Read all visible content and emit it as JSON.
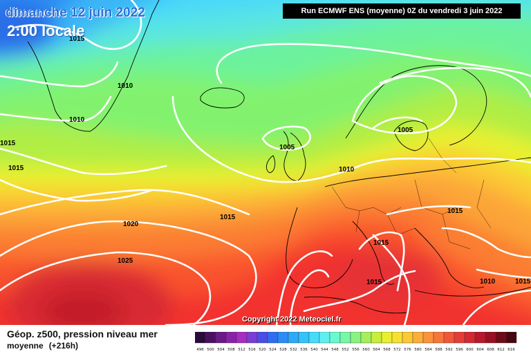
{
  "header": {
    "date": "dimanche 12 juin 2022",
    "time": "2:00 locale",
    "run": "Run ECMWF ENS (moyenne) 0Z du vendredi 3 juin 2022"
  },
  "footer": {
    "title": "Géop. z500, pression niveau mer",
    "subtitle": "moyenne",
    "lead": "(+216h)",
    "copyright": "Copyright 2022 Meteociel.fr"
  },
  "isobars": {
    "labels": [
      {
        "id": "iso-1015-greenland",
        "text": "1015"
      },
      {
        "id": "iso-1010-greenland-a",
        "text": "1010"
      },
      {
        "id": "iso-1010-greenland-b",
        "text": "1010"
      },
      {
        "id": "iso-1015-west-a",
        "text": "1015"
      },
      {
        "id": "iso-1015-west-b",
        "text": "1015"
      },
      {
        "id": "iso-1005-scotland",
        "text": "1005"
      },
      {
        "id": "iso-1010-north-sea",
        "text": "1010"
      },
      {
        "id": "iso-1005-scandinavia",
        "text": "1005"
      },
      {
        "id": "iso-1020-atlantic",
        "text": "1020"
      },
      {
        "id": "iso-1015-atlantic",
        "text": "1015"
      },
      {
        "id": "iso-1025-azores",
        "text": "1025"
      },
      {
        "id": "iso-1015-balkans",
        "text": "1015"
      },
      {
        "id": "iso-1015-italy",
        "text": "1015"
      },
      {
        "id": "iso-1015-africa",
        "text": "1015"
      },
      {
        "id": "iso-1010-greece",
        "text": "1010"
      },
      {
        "id": "iso-1015-east",
        "text": "1015"
      }
    ]
  },
  "scale": {
    "values": [
      "496",
      "500",
      "504",
      "508",
      "512",
      "516",
      "520",
      "524",
      "528",
      "532",
      "536",
      "540",
      "544",
      "548",
      "552",
      "556",
      "560",
      "564",
      "568",
      "572",
      "576",
      "580",
      "584",
      "588",
      "592",
      "596",
      "600",
      "604",
      "608",
      "612",
      "616"
    ],
    "colors": [
      "#2a0b3a",
      "#4a1060",
      "#6a1a86",
      "#8a22a8",
      "#a62cc4",
      "#7a3cd6",
      "#4a4ee6",
      "#2f6cf2",
      "#2a8cf6",
      "#2aaaf8",
      "#30c4fa",
      "#44dcfa",
      "#5ef0f0",
      "#6af8d0",
      "#76f8a8",
      "#88f480",
      "#a6ee5a",
      "#c8ee3c",
      "#e8f02e",
      "#f8e030",
      "#fcc834",
      "#fcae38",
      "#fc923a",
      "#f8763a",
      "#f05838",
      "#e63e36",
      "#d42832",
      "#b8182a",
      "#981022",
      "#700a18",
      "#480610"
    ]
  }
}
